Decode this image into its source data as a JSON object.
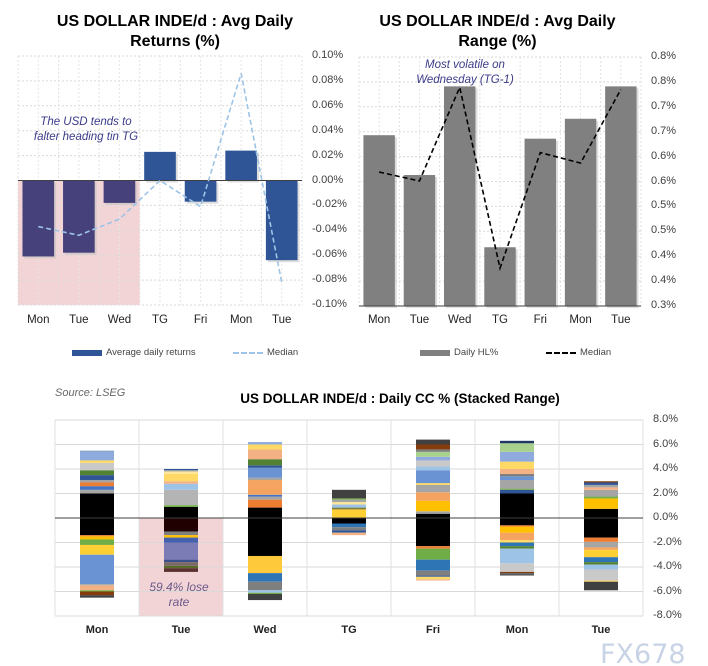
{
  "chart_data": [
    {
      "type": "bar",
      "title": "US DOLLAR INDE/d : Avg Daily Returns (%)",
      "categories": [
        "Mon",
        "Tue",
        "Wed",
        "TG",
        "Fri",
        "Mon",
        "Tue"
      ],
      "series": [
        {
          "name": "Average daily returns",
          "kind": "bar",
          "color": "#2f5597",
          "values": [
            -0.061,
            -0.058,
            -0.018,
            0.023,
            -0.017,
            0.024,
            -0.064
          ]
        },
        {
          "name": "Median",
          "kind": "line-dashed",
          "color": "#9dc3e6",
          "values": [
            -0.037,
            -0.044,
            -0.031,
            0.0,
            -0.021,
            0.086,
            -0.082
          ]
        }
      ],
      "ylim": [
        -0.1,
        0.1
      ],
      "yticks": [
        "0.10%",
        "0.08%",
        "0.06%",
        "0.04%",
        "0.02%",
        "0.00%",
        "-0.02%",
        "-0.04%",
        "-0.06%",
        "-0.08%",
        "-0.10%"
      ],
      "annotation": "The USD tends to falter heading tin TG",
      "highlight_color": "#f2d4d7",
      "grid": true,
      "legend": "bottom"
    },
    {
      "type": "bar",
      "title": "US DOLLAR INDE/d : Avg Daily Range (%)",
      "categories": [
        "Mon",
        "Tue",
        "Wed",
        "TG",
        "Fri",
        "Mon",
        "Tue"
      ],
      "series": [
        {
          "name": "Daily HL%",
          "kind": "bar",
          "color": "#808080",
          "values": [
            0.643,
            0.563,
            0.741,
            0.418,
            0.636,
            0.676,
            0.741
          ]
        },
        {
          "name": "Median",
          "kind": "line-dashed",
          "color": "#000000",
          "values": [
            0.569,
            0.551,
            0.739,
            0.376,
            0.608,
            0.587,
            0.735
          ]
        }
      ],
      "ylim": [
        0.3,
        0.8
      ],
      "yticks": [
        "0.8%",
        "0.8%",
        "0.7%",
        "0.7%",
        "0.6%",
        "0.6%",
        "0.5%",
        "0.5%",
        "0.4%",
        "0.4%",
        "0.3%"
      ],
      "annotation": "Most volatile on Wednesday (TG-1)",
      "grid": true,
      "legend": "bottom"
    },
    {
      "type": "bar",
      "title": "US DOLLAR INDE/d : Daily CC % (Stacked Range)",
      "source": "Source: LSEG",
      "categories": [
        "Mon",
        "Tue",
        "Wed",
        "TG",
        "Fri",
        "Mon",
        "Tue"
      ],
      "ylim": [
        -8,
        8
      ],
      "yticks": [
        "8.0%",
        "6.0%",
        "4.0%",
        "2.0%",
        "0.0%",
        "-2.0%",
        "-4.0%",
        "-6.0%",
        "-8.0%"
      ],
      "annotation": "59.4% lose rate",
      "highlight_color": "#f2d4d7",
      "stacks": [
        [
          [
            0,
            2,
            "#000"
          ],
          [
            2,
            2.3,
            "#a5a5a5"
          ],
          [
            2.3,
            2.6,
            "#4472c4"
          ],
          [
            2.6,
            2.9,
            "#ed7d31"
          ],
          [
            2.9,
            3.1,
            "#a5a5a5"
          ],
          [
            3.1,
            3.5,
            "#2f5597"
          ],
          [
            3.5,
            3.9,
            "#548235"
          ],
          [
            3.9,
            4.5,
            "#c9c9c9"
          ],
          [
            4.5,
            4.7,
            "#ffd966"
          ],
          [
            4.7,
            5.4,
            "#8faadc"
          ],
          [
            5.4,
            5.5,
            "#7f9fbf"
          ],
          [
            0,
            -1.4,
            "#000"
          ],
          [
            -1.4,
            -1.5,
            "#ed7d31"
          ],
          [
            -1.5,
            -1.75,
            "#ffc000"
          ],
          [
            -1.75,
            -2.2,
            "#70ad47"
          ],
          [
            -2.2,
            -3,
            "#ffd035"
          ],
          [
            -3,
            -5.4,
            "#6a93d4"
          ],
          [
            -5.4,
            -5.5,
            "#a5a5a5"
          ],
          [
            -5.5,
            -5.9,
            "#f4b183"
          ],
          [
            -5.9,
            -6,
            "#70ad47"
          ],
          [
            -6,
            -6.3,
            "#843c0c"
          ],
          [
            -6.3,
            -6.5,
            "#404040"
          ]
        ],
        [
          [
            0,
            0.9,
            "#000"
          ],
          [
            0.9,
            1.05,
            "#70ad47"
          ],
          [
            1.05,
            2.3,
            "#b4b4b4"
          ],
          [
            2.3,
            2.8,
            "#9dc3e6"
          ],
          [
            2.8,
            3,
            "#f4b183"
          ],
          [
            3,
            3.6,
            "#ffd966"
          ],
          [
            3.6,
            3.8,
            "#ffe699"
          ],
          [
            3.8,
            3.9,
            "#a5a5a5"
          ],
          [
            3.9,
            4,
            "#2f5597"
          ],
          [
            0,
            -1.1,
            "#200000"
          ],
          [
            -1.1,
            -1.4,
            "#7f7f7f"
          ],
          [
            -1.4,
            -1.6,
            "#ffc000"
          ],
          [
            -1.6,
            -2,
            "#4461b0"
          ],
          [
            -2,
            -3.4,
            "#7b7bb5"
          ],
          [
            -3.4,
            -3.6,
            "#3b4f8a"
          ],
          [
            -3.6,
            -3.9,
            "#7a6a6a"
          ],
          [
            -3.9,
            -4.1,
            "#5a6a2a"
          ],
          [
            -4.1,
            -4.4,
            "#5a3030"
          ]
        ],
        [
          [
            0,
            0.85,
            "#000"
          ],
          [
            0.85,
            1.5,
            "#ed7d31"
          ],
          [
            1.5,
            1.75,
            "#a5a5a5"
          ],
          [
            1.75,
            1.9,
            "#4472c4"
          ],
          [
            1.9,
            3.1,
            "#f4a460"
          ],
          [
            3.1,
            3.3,
            "#a5a5a5"
          ],
          [
            3.3,
            4.1,
            "#6a93d4"
          ],
          [
            4.1,
            4.3,
            "#2f5597"
          ],
          [
            4.3,
            4.8,
            "#548235"
          ],
          [
            4.8,
            5.6,
            "#f4b183"
          ],
          [
            5.6,
            6,
            "#ffd966"
          ],
          [
            6,
            6.2,
            "#8faadc"
          ],
          [
            0,
            -3.1,
            "#000"
          ],
          [
            -3.1,
            -4.5,
            "#ffc93c"
          ],
          [
            -4.5,
            -5.2,
            "#2e75b6"
          ],
          [
            -5.2,
            -5.9,
            "#7f7f7f"
          ],
          [
            -5.9,
            -6.1,
            "#9dc3e6"
          ],
          [
            -6.1,
            -6.2,
            "#70ad47"
          ],
          [
            -6.2,
            -6.7,
            "#404040"
          ]
        ],
        [
          [
            0,
            0.7,
            "#ffd035"
          ],
          [
            0.7,
            0.85,
            "#7f7f3f"
          ],
          [
            0.85,
            1.1,
            "#9dc3e6"
          ],
          [
            1.1,
            1.3,
            "#ffe699"
          ],
          [
            1.3,
            1.5,
            "#a5a5a5"
          ],
          [
            1.5,
            1.6,
            "#70ad47"
          ],
          [
            1.6,
            2.3,
            "#404040"
          ],
          [
            0,
            -0.45,
            "#000"
          ],
          [
            -0.45,
            -0.75,
            "#2e75b6"
          ],
          [
            -0.75,
            -1,
            "#7f7f7f"
          ],
          [
            -1,
            -1.2,
            "#2f5597"
          ],
          [
            -1.2,
            -1.4,
            "#f4b183"
          ]
        ],
        [
          [
            0,
            0.35,
            "#000"
          ],
          [
            0.35,
            0.55,
            "#a5a5a5"
          ],
          [
            0.55,
            1.4,
            "#ffc000"
          ],
          [
            1.4,
            2.1,
            "#f4a460"
          ],
          [
            2.1,
            2.7,
            "#a5a5a5"
          ],
          [
            2.7,
            2.85,
            "#ffd966"
          ],
          [
            2.85,
            3.9,
            "#6a93d4"
          ],
          [
            3.9,
            4.2,
            "#9dc3e6"
          ],
          [
            4.2,
            4.7,
            "#c9c9c9"
          ],
          [
            4.7,
            5,
            "#8faadc"
          ],
          [
            5,
            5.4,
            "#a9d18e"
          ],
          [
            5.4,
            5.6,
            "#7f7f7f"
          ],
          [
            5.6,
            6,
            "#843c0c"
          ],
          [
            6,
            6.4,
            "#404040"
          ],
          [
            0,
            -2.3,
            "#000"
          ],
          [
            -2.3,
            -2.5,
            "#ed7d31"
          ],
          [
            -2.5,
            -3.4,
            "#70ad47"
          ],
          [
            -3.4,
            -4.3,
            "#2e75b6"
          ],
          [
            -4.3,
            -4.7,
            "#7f7f7f"
          ],
          [
            -4.7,
            -4.8,
            "#2f5597"
          ],
          [
            -4.8,
            -5,
            "#ffd966"
          ],
          [
            -5,
            -5.1,
            "#f4b183"
          ]
        ],
        [
          [
            0,
            2,
            "#000"
          ],
          [
            2,
            2.3,
            "#2f5597"
          ],
          [
            2.3,
            2.4,
            "#70ad47"
          ],
          [
            2.4,
            3.1,
            "#a5a5a5"
          ],
          [
            3.1,
            3.4,
            "#6a93d4"
          ],
          [
            3.4,
            3.6,
            "#7f7f7f"
          ],
          [
            3.6,
            4,
            "#f4b183"
          ],
          [
            4,
            4.6,
            "#ffd966"
          ],
          [
            4.6,
            5.4,
            "#8faadc"
          ],
          [
            5.4,
            6.1,
            "#a9d18e"
          ],
          [
            6.1,
            6.3,
            "#1f3864"
          ],
          [
            0,
            -0.6,
            "#000"
          ],
          [
            -0.6,
            -0.7,
            "#ed7d31"
          ],
          [
            -0.7,
            -1.2,
            "#ffc000"
          ],
          [
            -1.2,
            -1.8,
            "#f4a460"
          ],
          [
            -1.8,
            -2,
            "#ffd966"
          ],
          [
            -2,
            -2.3,
            "#2e75b6"
          ],
          [
            -2.3,
            -2.5,
            "#548235"
          ],
          [
            -2.5,
            -3.7,
            "#9dc3e6"
          ],
          [
            -3.7,
            -4.4,
            "#c9c9c9"
          ],
          [
            -4.4,
            -4.5,
            "#843c0c"
          ],
          [
            -4.5,
            -4.7,
            "#595959"
          ]
        ],
        [
          [
            0,
            0.75,
            "#000"
          ],
          [
            0.75,
            1.6,
            "#ffc000"
          ],
          [
            1.6,
            1.75,
            "#70ad47"
          ],
          [
            1.75,
            2.3,
            "#a5a5a5"
          ],
          [
            2.3,
            2.5,
            "#f4b183"
          ],
          [
            2.5,
            2.7,
            "#a5a5a5"
          ],
          [
            2.7,
            2.9,
            "#2f5597"
          ],
          [
            2.9,
            3,
            "#843c0c"
          ],
          [
            0,
            -1.6,
            "#000"
          ],
          [
            -1.6,
            -1.95,
            "#ed7d31"
          ],
          [
            -1.95,
            -2.4,
            "#a5a5a5"
          ],
          [
            -2.4,
            -2.6,
            "#f4a460"
          ],
          [
            -2.6,
            -3.2,
            "#ffd035"
          ],
          [
            -3.2,
            -3.6,
            "#2e75b6"
          ],
          [
            -3.6,
            -3.8,
            "#548235"
          ],
          [
            -3.8,
            -4.2,
            "#9dc3e6"
          ],
          [
            -4.2,
            -5.1,
            "#c9c9c9"
          ],
          [
            -5.1,
            -5.2,
            "#ffd966"
          ],
          [
            -5.2,
            -5.9,
            "#404040"
          ]
        ]
      ],
      "grid": true
    }
  ],
  "watermark": "FX678"
}
